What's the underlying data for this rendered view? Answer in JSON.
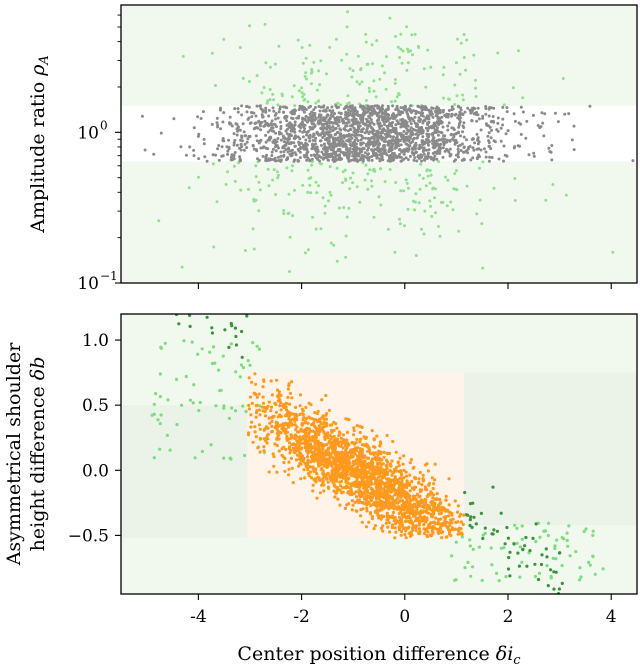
{
  "chart_data": [
    {
      "type": "scatter",
      "panel": "top",
      "ylabel": "Amplitude ratio ρ_A",
      "ylabel_text": "Amplitude ratio ",
      "ylabel_symbol": "ρ",
      "ylabel_sub": "A",
      "yscale": "log",
      "ylim": [
        0.1,
        7
      ],
      "xlim": [
        -5.5,
        4.5
      ],
      "y_ticks": [
        {
          "value": 1,
          "base": "10",
          "exp": "0"
        },
        {
          "value": 0.1,
          "base": "10",
          "exp": "−1"
        }
      ],
      "x_ticks_unlabeled": [
        -4,
        -2,
        0,
        2,
        4
      ],
      "regions": [
        {
          "name": "accepted band",
          "y_range": [
            0.64,
            1.5
          ],
          "color": "#ffffff"
        },
        {
          "name": "rejected",
          "color": "#f1f9ee"
        }
      ],
      "series": [
        {
          "color": "#8a8a8a",
          "center_x": -0.8,
          "spread_x": 1.4,
          "y_range": [
            0.64,
            1.5
          ],
          "count": 2000
        },
        {
          "color": "#8fe08f",
          "center_x": -0.8,
          "spread_x": 1.5,
          "y_range_log": [
            -0.95,
            0.8
          ],
          "count": 340
        }
      ]
    },
    {
      "type": "scatter",
      "panel": "bottom",
      "xlabel": "Center position difference δi_c",
      "xlabel_text": "Center position difference ",
      "xlabel_symbol": "δi",
      "xlabel_sub": "c",
      "ylabel_line1": "Asymmetrical shoulder",
      "ylabel_line2_text": "height difference ",
      "ylabel_line2_symbol": "δb",
      "xlim": [
        -5.5,
        4.5
      ],
      "ylim": [
        -0.95,
        1.2
      ],
      "x_ticks": [
        -4,
        -2,
        0,
        2,
        4
      ],
      "x_tick_labels": [
        "-4",
        "-2",
        "0",
        "2",
        "4"
      ],
      "y_ticks": [
        1.0,
        0.5,
        0.0,
        -0.5
      ],
      "y_tick_labels": [
        "1.0",
        "0.5",
        "0.0",
        "−0.5"
      ],
      "regions": [
        {
          "name": "accepted",
          "x_range": [
            -3.05,
            1.15
          ],
          "y_range": [
            -0.52,
            0.75
          ],
          "color": "#fff3ea"
        },
        {
          "name": "left shoulder band",
          "x_range": [
            -5.5,
            -3.05
          ],
          "y_range": [
            -0.52,
            0.5
          ],
          "color": "#ebf3e9"
        },
        {
          "name": "right shoulder band",
          "x_range": [
            1.15,
            4.5
          ],
          "y_range": [
            -0.42,
            0.75
          ],
          "color": "#ebf3e9"
        },
        {
          "name": "rejected",
          "color": "#f1f9ee"
        }
      ],
      "series": [
        {
          "color": "#ff9a1f",
          "slope": -0.24,
          "intercept": -0.04,
          "x_center": -0.8,
          "x_spread": 1.1,
          "count": 2100
        },
        {
          "color": "#3e8f3e",
          "count": 110
        },
        {
          "color": "#7ddc7d",
          "count": 140
        }
      ]
    }
  ]
}
